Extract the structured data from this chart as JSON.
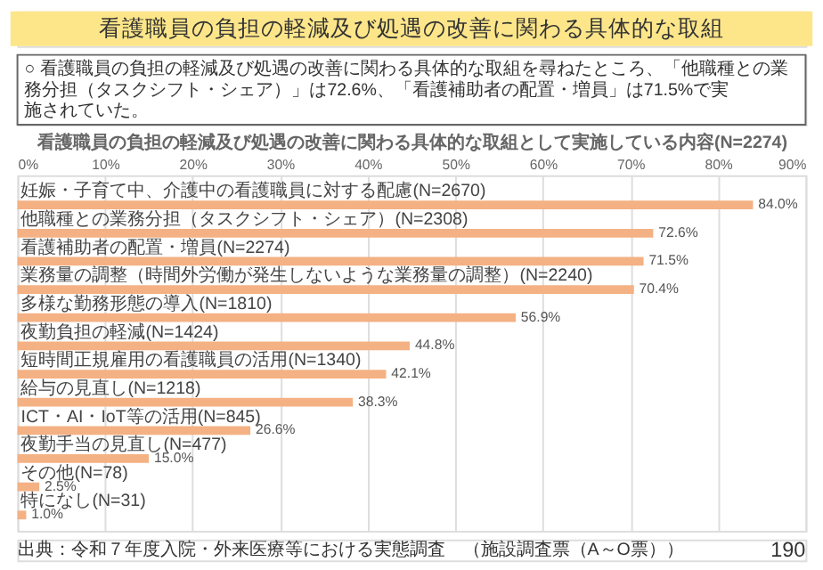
{
  "chart_data": {
    "type": "bar",
    "orientation": "horizontal",
    "title": "看護職員の負担の軽減及び処遇の改善に関わる具体的な取組",
    "subtitle": "○ 看護職員の負担の軽減及び処遇の改善に関わる具体的な取組を尋ねたところ、「他職種との業務分担（タスクシフト・シェア）」は72.6%、「看護補助者の配置・増員」は71.5%で実施されていた。",
    "xlabel": "看護職員の負担の軽減及び処遇の改善に関わる具体的な取組として実施している内容(N=2274)",
    "categories": [
      "妊娠・子育て中、介護中の看護職員に対する配慮(N=2670)",
      "他職種との業務分担（タスクシフト・シェア）(N=2308)",
      "看護補助者の配置・増員(N=2274)",
      "業務量の調整（時間外労働が発生しないような業務量の調整）(N=2240)",
      "多様な勤務形態の導入(N=1810)",
      "夜勤負担の軽減(N=1424)",
      "短時間正規雇用の看護職員の活用(N=1340)",
      "給与の見直し(N=1218)",
      "ICT・AI・IoT等の活用(N=845)",
      "夜勤手当の見直し(N=477)",
      "その他(N=78)",
      "特になし(N=31)"
    ],
    "values": [
      84.0,
      72.6,
      71.5,
      70.4,
      56.9,
      44.8,
      42.1,
      38.3,
      26.6,
      15.0,
      2.5,
      1.0
    ],
    "value_labels": [
      "84.0%",
      "72.6%",
      "71.5%",
      "70.4%",
      "56.9%",
      "44.8%",
      "42.1%",
      "38.3%",
      "26.6%",
      "15.0%",
      "2.5%",
      "1.0%"
    ],
    "color": "#f4b183",
    "xlim": [
      0,
      90
    ],
    "xticks": [
      {
        "value": 0,
        "label": "0%"
      },
      {
        "value": 10,
        "label": "10%"
      },
      {
        "value": 20,
        "label": "20%"
      },
      {
        "value": 30,
        "label": "30%"
      },
      {
        "value": 40,
        "label": "40%"
      },
      {
        "value": 50,
        "label": "50%"
      },
      {
        "value": 60,
        "label": "60%"
      },
      {
        "value": 70,
        "label": "70%"
      },
      {
        "value": 80,
        "label": "80%"
      },
      {
        "value": 90,
        "label": "90%"
      }
    ],
    "grid": "x",
    "annotations": [
      "出典：令和７年度入院・外来医療等における実態調査　（施設調査票（A～O票））",
      "190"
    ]
  }
}
